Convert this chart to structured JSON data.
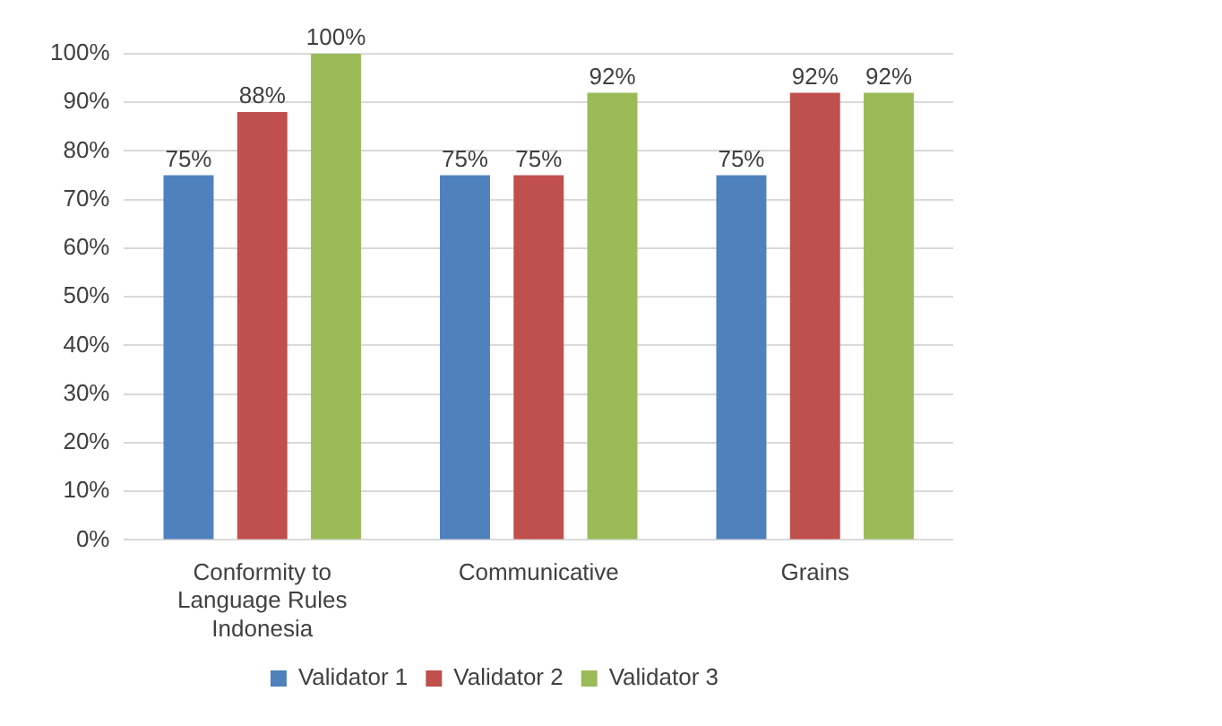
{
  "chart_data": {
    "type": "bar",
    "categories": [
      "Conformity to Language Rules Indonesia",
      "Communicative",
      "Grains"
    ],
    "series": [
      {
        "name": "Validator 1",
        "color": "#4f81bd",
        "values": [
          75,
          75,
          75
        ],
        "value_labels": [
          "75%",
          "75%",
          "75%"
        ]
      },
      {
        "name": "Validator 2",
        "color": "#c0504d",
        "values": [
          88,
          75,
          92
        ],
        "value_labels": [
          "88%",
          "75%",
          "92%"
        ]
      },
      {
        "name": "Validator 3",
        "color": "#9bbb59",
        "values": [
          100,
          92,
          92
        ],
        "value_labels": [
          "100%",
          "92%",
          "92%"
        ]
      }
    ],
    "ylim": [
      0,
      100
    ],
    "yticks": [
      {
        "value": 0,
        "label": "0%"
      },
      {
        "value": 10,
        "label": "10%"
      },
      {
        "value": 20,
        "label": "20%"
      },
      {
        "value": 30,
        "label": "30%"
      },
      {
        "value": 40,
        "label": "40%"
      },
      {
        "value": 50,
        "label": "50%"
      },
      {
        "value": 60,
        "label": "60%"
      },
      {
        "value": 70,
        "label": "70%"
      },
      {
        "value": 80,
        "label": "80%"
      },
      {
        "value": 90,
        "label": "90%"
      },
      {
        "value": 100,
        "label": "100%"
      }
    ],
    "grid": "y",
    "legend": "bottom"
  }
}
